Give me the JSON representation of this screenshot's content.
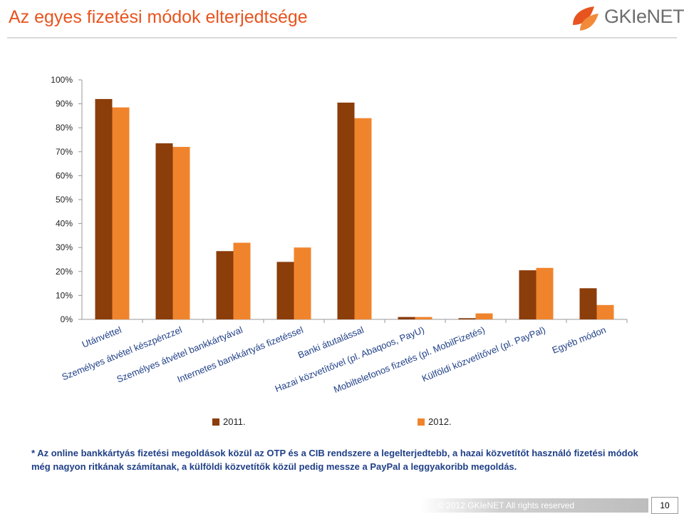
{
  "slide": {
    "title": "Az egyes fizetési módok elterjedtsége",
    "logo_text": "GKIeNET",
    "footer": "© 2012 GKIeNET All rights reserved",
    "page_number": "10",
    "note": "* Az online bankkártyás fizetési megoldások közül az OTP és a CIB rendszere a legelterjedtebb, a hazai közvetítőt használó fizetési módok még nagyon ritkának számítanak, a külföldi közvetítők közül pedig messze a PayPal a leggyakoribb megoldás."
  },
  "colors": {
    "title": "#e8541f",
    "series_2011": "#8b3d0a",
    "series_2012": "#f0842c",
    "note": "#1f3f87"
  },
  "chart_data": {
    "type": "bar",
    "title": "",
    "xlabel": "",
    "ylabel": "",
    "ylim": [
      0,
      100
    ],
    "y_ticks": [
      "0%",
      "10%",
      "20%",
      "30%",
      "40%",
      "50%",
      "60%",
      "70%",
      "80%",
      "90%",
      "100%"
    ],
    "grid": false,
    "legend_position": "bottom",
    "categories": [
      "Utánvéttel",
      "Személyes átvétel készpénzzel",
      "Személyes átvétel bankkártyával",
      "Internetes bankkártyás fizetéssel",
      "Banki átutalással",
      "Hazai közvetítővel (pl. Abaqoos, PayU)",
      "Mobiltelefonos fizetés (pl. MobilFizetés)",
      "Külföldi közvetítővel (pl. PayPal)",
      "Egyéb módon"
    ],
    "series": [
      {
        "name": "2011.",
        "values": [
          92,
          73.5,
          28.5,
          24,
          90.5,
          1,
          0.5,
          20.5,
          13
        ]
      },
      {
        "name": "2012.",
        "values": [
          88.5,
          72,
          32,
          30,
          84,
          1,
          2.5,
          21.5,
          6
        ]
      }
    ]
  }
}
